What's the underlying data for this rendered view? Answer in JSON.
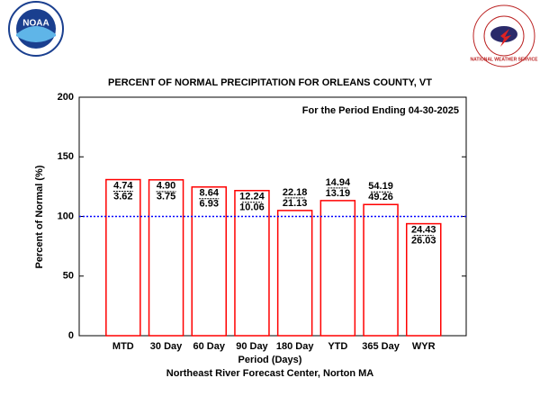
{
  "logos": {
    "left": "NOAA",
    "right": "NATIONAL WEATHER SERVICE"
  },
  "chart_data": {
    "type": "bar",
    "title": "PERCENT OF NORMAL PRECIPITATION FOR ORLEANS COUNTY, VT",
    "subtitle": "For the Period Ending 04-30-2025",
    "xlabel": "Period (Days)",
    "ylabel": "Percent of Normal (%)",
    "footer": "Northeast River Forecast Center, Norton MA",
    "categories": [
      "MTD",
      "30 Day",
      "60 Day",
      "90 Day",
      "180 Day",
      "YTD",
      "365 Day",
      "WYR"
    ],
    "values": [
      130.9,
      130.7,
      124.7,
      121.7,
      105.0,
      113.3,
      110.0,
      93.9
    ],
    "observed": [
      "4.74",
      "4.90",
      "8.64",
      "12.24",
      "22.18",
      "14.94",
      "54.19",
      "24.43"
    ],
    "normal": [
      "3.62",
      "3.75",
      "6.93",
      "10.06",
      "21.13",
      "13.19",
      "49.26",
      "26.03"
    ],
    "color": "#ff0000",
    "reference_line": {
      "value": 100,
      "color": "#0000ff"
    },
    "ylim": [
      0,
      200
    ],
    "yticks": [
      0,
      50,
      100,
      150,
      200
    ]
  }
}
